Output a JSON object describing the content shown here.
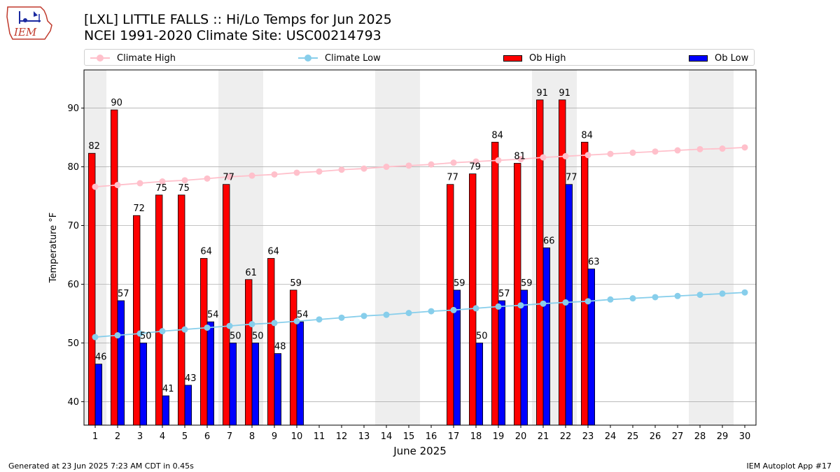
{
  "header": {
    "title_line1": "[LXL] LITTLE FALLS :: Hi/Lo Temps for Jun 2025",
    "title_line2": "NCEI 1991-2020 Climate Site: USC00214793"
  },
  "logo": {
    "text": "IEM"
  },
  "footer": {
    "left": "Generated at 23 Jun 2025 7:23 AM CDT in 0.45s",
    "right": "IEM Autoplot App #17"
  },
  "colors": {
    "ob_high": "#ff0000",
    "ob_low": "#0000ff",
    "climate_high": "#ffc0cb",
    "climate_low": "#87ceeb",
    "weekend_shade": "#eeeeee",
    "grid": "#b0b0b0"
  },
  "chart_data": {
    "type": "bar",
    "xlabel": "June 2025",
    "ylabel": "Temperature °F",
    "xlim": [
      0.5,
      30.5
    ],
    "ylim": [
      36,
      96.5
    ],
    "yticks": [
      40,
      50,
      60,
      70,
      80,
      90
    ],
    "grid": "horizontal",
    "legend_position": "top",
    "legend": [
      "Climate High",
      "Climate Low",
      "Ob High",
      "Ob Low"
    ],
    "days": [
      1,
      2,
      3,
      4,
      5,
      6,
      7,
      8,
      9,
      10,
      11,
      12,
      13,
      14,
      15,
      16,
      17,
      18,
      19,
      20,
      21,
      22,
      23,
      24,
      25,
      26,
      27,
      28,
      29,
      30
    ],
    "shaded_days": [
      1,
      7,
      8,
      14,
      15,
      21,
      22,
      28,
      29
    ],
    "series": [
      {
        "name": "Ob High",
        "kind": "bar",
        "values": [
          82.3,
          89.7,
          71.7,
          75.2,
          75.2,
          64.4,
          77.0,
          60.8,
          64.4,
          59.0,
          null,
          null,
          null,
          null,
          null,
          null,
          77.0,
          78.8,
          84.2,
          80.6,
          91.4,
          91.4,
          84.2,
          null,
          null,
          null,
          null,
          null,
          null,
          null
        ],
        "labels": [
          "82",
          "90",
          "72",
          "75",
          "75",
          "64",
          "77",
          "61",
          "64",
          "59",
          "",
          "",
          "",
          "",
          "",
          "",
          "77",
          "79",
          "84",
          "81",
          "91",
          "91",
          "84",
          "",
          "",
          "",
          "",
          "",
          "",
          ""
        ]
      },
      {
        "name": "Ob Low",
        "kind": "bar",
        "values": [
          46.4,
          57.2,
          50.0,
          41.0,
          42.8,
          53.6,
          50.0,
          50.0,
          48.2,
          53.6,
          null,
          null,
          null,
          null,
          null,
          null,
          59.0,
          50.0,
          57.2,
          59.0,
          66.2,
          77.0,
          62.6,
          null,
          null,
          null,
          null,
          null,
          null,
          null
        ],
        "labels": [
          "46",
          "57",
          "50",
          "41",
          "43",
          "54",
          "50",
          "50",
          "48",
          "54",
          "",
          "",
          "",
          "",
          "",
          "",
          "59",
          "50",
          "57",
          "59",
          "66",
          "77",
          "63",
          "",
          "",
          "",
          "",
          "",
          "",
          ""
        ]
      },
      {
        "name": "Climate High",
        "kind": "line",
        "values": [
          76.6,
          76.9,
          77.2,
          77.5,
          77.7,
          78.0,
          78.3,
          78.5,
          78.7,
          79.0,
          79.2,
          79.5,
          79.7,
          80.0,
          80.2,
          80.4,
          80.7,
          80.9,
          81.1,
          81.3,
          81.6,
          81.8,
          82.0,
          82.2,
          82.4,
          82.6,
          82.8,
          83.0,
          83.1,
          83.3
        ]
      },
      {
        "name": "Climate Low",
        "kind": "line",
        "values": [
          51.0,
          51.3,
          51.6,
          52.0,
          52.3,
          52.6,
          52.9,
          53.2,
          53.4,
          53.7,
          54.0,
          54.3,
          54.6,
          54.8,
          55.1,
          55.4,
          55.6,
          55.9,
          56.2,
          56.4,
          56.7,
          56.9,
          57.1,
          57.4,
          57.6,
          57.8,
          58.0,
          58.2,
          58.4,
          58.6
        ]
      }
    ]
  }
}
